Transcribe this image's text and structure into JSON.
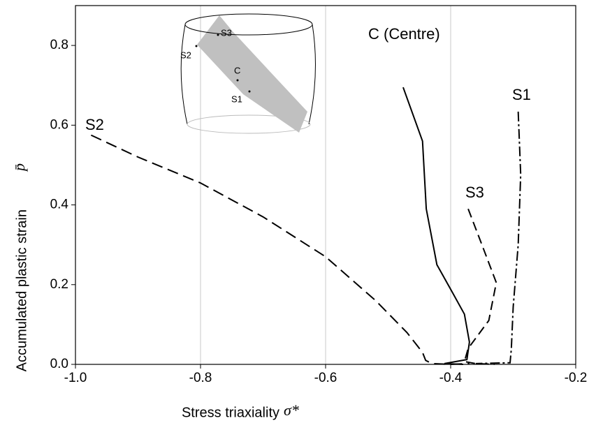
{
  "chart_data": {
    "type": "line",
    "x_label": "Stress triaxiality",
    "x_label_symbol": "σ*",
    "y_label": "Accumulated plastic strain",
    "y_label_symbol": "p̄",
    "xlim": [
      -1,
      -0.2
    ],
    "xticks": [
      {
        "value": -1,
        "label": "-1.0"
      },
      -0.8,
      -0.6,
      -0.4,
      -0.2
    ],
    "ylim": [
      0,
      0.9
    ],
    "yticks": [
      {
        "value": 0,
        "label": "0.0"
      },
      0.2,
      0.4,
      0.6,
      0.8
    ],
    "grid": "x",
    "series": [
      {
        "name": "S2",
        "color": "#000000",
        "dash": "16 8",
        "x": [
          -0.975,
          -0.9,
          -0.8,
          -0.7,
          -0.6,
          -0.52,
          -0.47,
          -0.445,
          -0.44,
          -0.43,
          -0.4,
          -0.37
        ],
        "values": [
          0.575,
          0.52,
          0.455,
          0.37,
          0.27,
          0.16,
          0.08,
          0.03,
          0.01,
          0.002,
          0.0,
          0.002
        ]
      },
      {
        "name": "C (Centre)",
        "color": "#000000",
        "dash": "none",
        "x": [
          -0.476,
          -0.445,
          -0.439,
          -0.422,
          -0.397,
          -0.378,
          -0.37,
          -0.374,
          -0.41,
          -0.38
        ],
        "values": [
          0.695,
          0.56,
          0.39,
          0.25,
          0.18,
          0.126,
          0.056,
          0.012,
          0.002,
          0.0
        ]
      },
      {
        "name": "S3",
        "color": "#000000",
        "dash": "13 7",
        "x": [
          -0.372,
          -0.35,
          -0.327,
          -0.339,
          -0.372,
          -0.378,
          -0.36,
          -0.33
        ],
        "values": [
          0.39,
          0.3,
          0.205,
          0.11,
          0.04,
          0.007,
          0.002,
          0.0
        ]
      },
      {
        "name": "S1",
        "color": "#000000",
        "dash": "14 4 3 4",
        "x": [
          -0.292,
          -0.288,
          -0.292,
          -0.3,
          -0.303,
          -0.305,
          -0.36
        ],
        "values": [
          0.634,
          0.476,
          0.3,
          0.144,
          0.038,
          0.004,
          0.002
        ]
      }
    ],
    "inset": {
      "labels": [
        "S3",
        "S2",
        "C",
        "S1"
      ]
    }
  }
}
